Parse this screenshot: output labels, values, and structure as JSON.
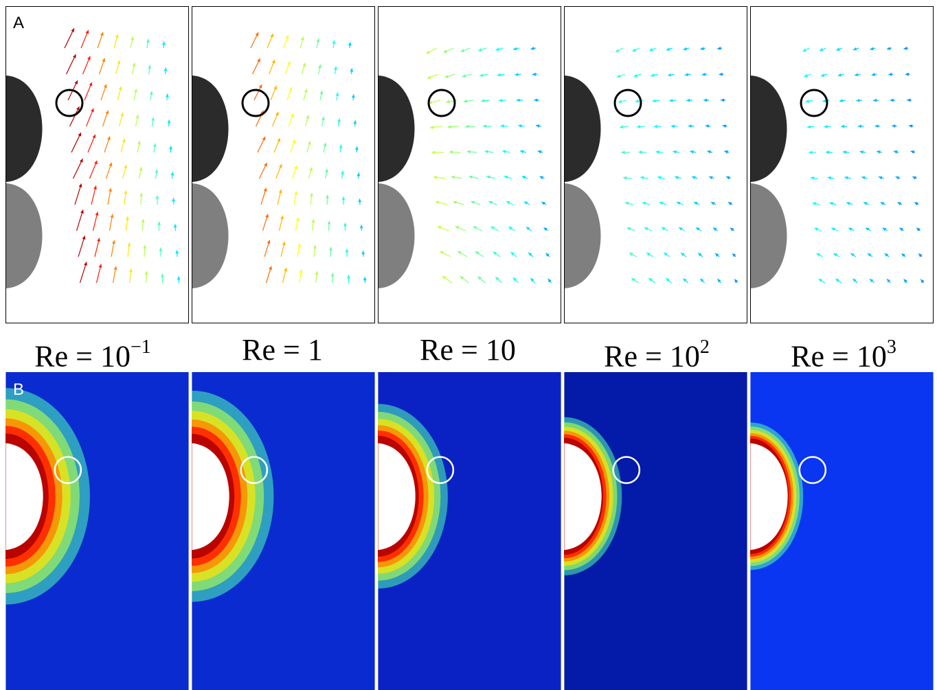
{
  "panel_labels": {
    "a": "A",
    "b": "B"
  },
  "conditions": [
    {
      "prefix": "Re = ",
      "base": "10",
      "exp": "−1"
    },
    {
      "prefix": "Re = ",
      "base": "1",
      "exp": ""
    },
    {
      "prefix": "Re = ",
      "base": "10",
      "exp": ""
    },
    {
      "prefix": "Re = ",
      "base": "10",
      "exp": "2"
    },
    {
      "prefix": "Re = ",
      "base": "10",
      "exp": "3"
    }
  ],
  "colors": {
    "upper_cylinder": "#2b2b2b",
    "lower_cylinder": "#7f7f7f",
    "probe_circle_a": "#000000",
    "probe_circle_b": "#ffffff",
    "field_backgrounds": [
      "#0a2bd0",
      "#0a2bd0",
      "#0a22c4",
      "#041aa8",
      "#0a36f2"
    ]
  }
}
